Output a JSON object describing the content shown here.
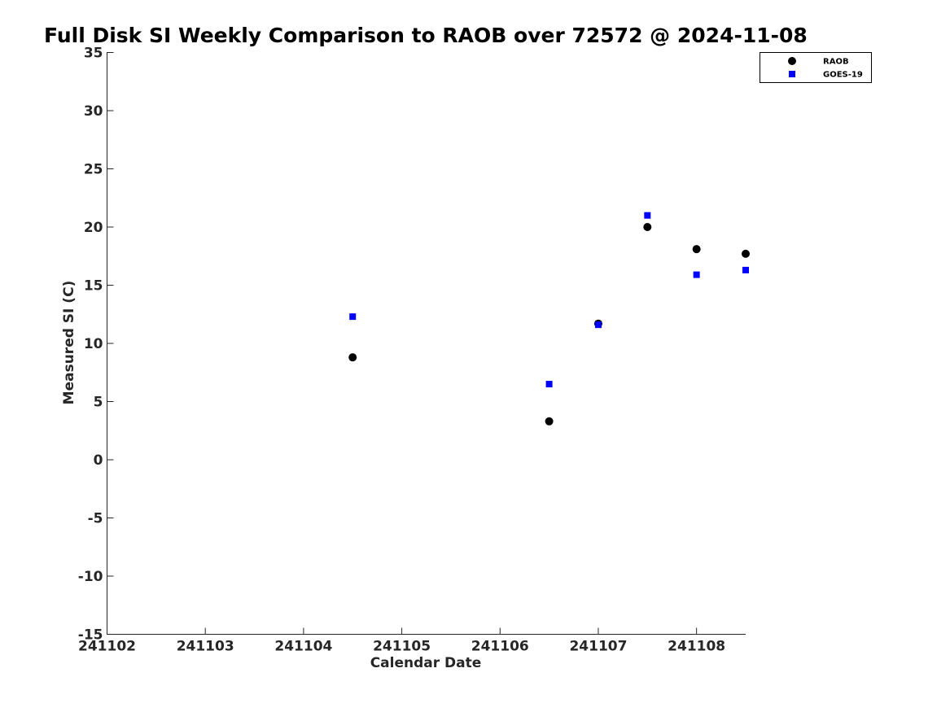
{
  "chart_data": {
    "type": "scatter",
    "title": "Full Disk SI Weekly Comparison to RAOB over 72572 @ 2024-11-08",
    "xlabel": "Calendar Date",
    "ylabel": "Measured SI (C)",
    "xlim": [
      "2024-11-02 00:00",
      "2024-11-08 12:00"
    ],
    "ylim": [
      -15,
      35
    ],
    "x_ticks": [
      "241102",
      "241103",
      "241104",
      "241105",
      "241106",
      "241107",
      "241108"
    ],
    "y_ticks": [
      "-15",
      "-10",
      "-5",
      "0",
      "5",
      "10",
      "15",
      "20",
      "25",
      "30",
      "35"
    ],
    "grid": false,
    "legend_position": "top-right",
    "series": [
      {
        "name": "RAOB",
        "marker": "circle",
        "color": "#000000",
        "points": [
          {
            "x": "2024-11-04 12:00",
            "y": 8.8
          },
          {
            "x": "2024-11-06 12:00",
            "y": 3.3
          },
          {
            "x": "2024-11-07 00:00",
            "y": 11.7
          },
          {
            "x": "2024-11-07 12:00",
            "y": 20.0
          },
          {
            "x": "2024-11-08 00:00",
            "y": 18.1
          },
          {
            "x": "2024-11-08 12:00",
            "y": 17.7
          }
        ]
      },
      {
        "name": "GOES-19",
        "marker": "square",
        "color": "#0000ff",
        "points": [
          {
            "x": "2024-11-04 12:00",
            "y": 12.3
          },
          {
            "x": "2024-11-06 12:00",
            "y": 6.5
          },
          {
            "x": "2024-11-07 00:00",
            "y": 11.6
          },
          {
            "x": "2024-11-07 12:00",
            "y": 21.0
          },
          {
            "x": "2024-11-08 00:00",
            "y": 15.9
          },
          {
            "x": "2024-11-08 12:00",
            "y": 16.3
          }
        ]
      }
    ]
  }
}
